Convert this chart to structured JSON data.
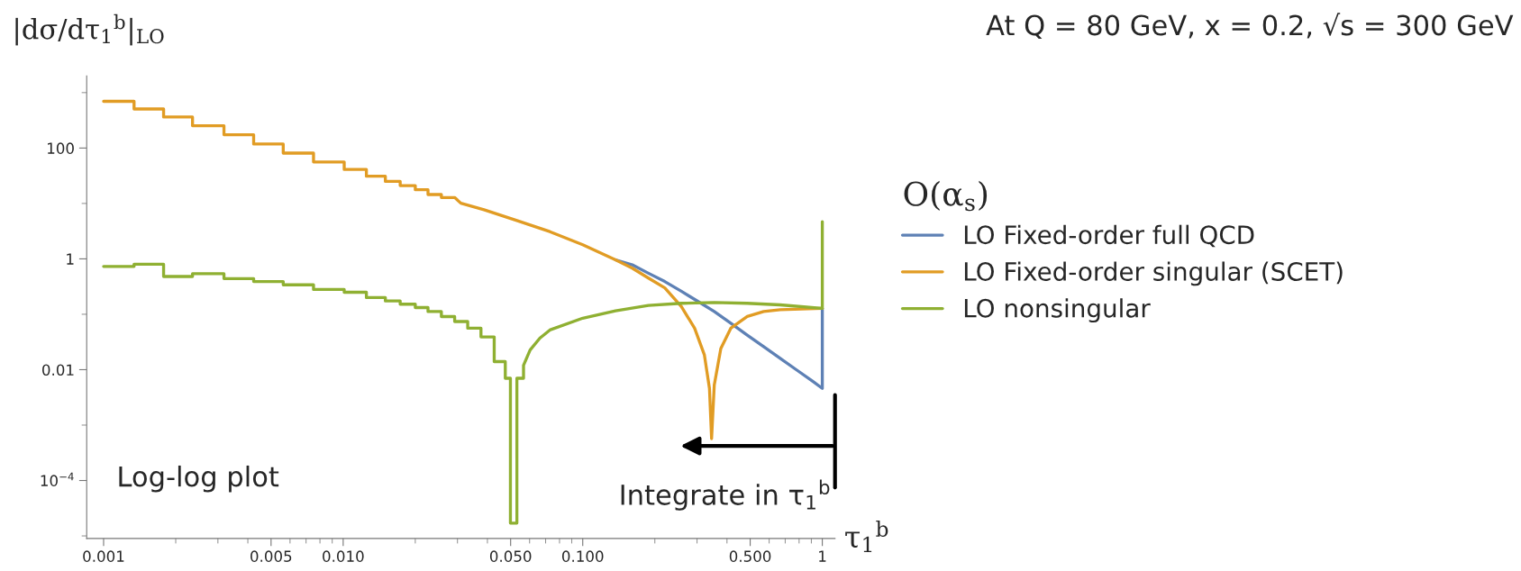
{
  "chart_data": {
    "type": "line",
    "log": "xy",
    "title": "At Q = 80 GeV, x = 0.2, √s = 300 GeV",
    "ylabel": "|dσ/dτ$_{1}$$^{b}$|$_{LO}$",
    "xlabel": "τ$_{1}$$^{b}$",
    "legend_title": "O(α$_{s}$)",
    "legend": "right",
    "annotations": [
      "Log-log plot",
      "Integrate in τ$_{1}$$^{b}$"
    ],
    "xlim": [
      0.00085,
      1.13
    ],
    "ylim": [
      9e-06,
      2000
    ],
    "xticks": [
      {
        "value": 0.001,
        "label": "0.001"
      },
      {
        "value": 0.002,
        "label": null
      },
      {
        "value": 0.003,
        "label": null
      },
      {
        "value": 0.004,
        "label": null
      },
      {
        "value": 0.005,
        "label": "0.005"
      },
      {
        "value": 0.006,
        "label": null
      },
      {
        "value": 0.007,
        "label": null
      },
      {
        "value": 0.008,
        "label": null
      },
      {
        "value": 0.009,
        "label": null
      },
      {
        "value": 0.01,
        "label": "0.010"
      },
      {
        "value": 0.02,
        "label": null
      },
      {
        "value": 0.03,
        "label": null
      },
      {
        "value": 0.04,
        "label": null
      },
      {
        "value": 0.05,
        "label": "0.050"
      },
      {
        "value": 0.06,
        "label": null
      },
      {
        "value": 0.07,
        "label": null
      },
      {
        "value": 0.08,
        "label": null
      },
      {
        "value": 0.09,
        "label": null
      },
      {
        "value": 0.1,
        "label": "0.100"
      },
      {
        "value": 0.2,
        "label": null
      },
      {
        "value": 0.3,
        "label": null
      },
      {
        "value": 0.4,
        "label": null
      },
      {
        "value": 0.5,
        "label": "0.500"
      },
      {
        "value": 0.6,
        "label": null
      },
      {
        "value": 0.7,
        "label": null
      },
      {
        "value": 0.8,
        "label": null
      },
      {
        "value": 0.9,
        "label": null
      },
      1
    ],
    "yticks": [
      {
        "value": 1e-05,
        "label": null
      },
      {
        "value": 0.0001,
        "label": "10$^{−4}$"
      },
      {
        "value": 0.001,
        "label": null
      },
      0.01,
      {
        "value": 0.1,
        "label": null
      },
      1,
      {
        "value": 10,
        "label": null
      },
      100,
      {
        "value": 1000,
        "label": null
      }
    ],
    "series": [
      {
        "name": "LO Fixed-order full QCD",
        "color": "#5e81b5",
        "x": [
          0.137,
          0.161,
          0.188,
          0.22,
          0.258,
          0.303,
          0.354,
          0.415,
          0.486,
          0.569,
          0.667,
          0.781,
          0.915,
          1,
          1
        ],
        "values": [
          0.96,
          0.78,
          0.55,
          0.39,
          0.26,
          0.17,
          0.112,
          0.069,
          0.042,
          0.026,
          0.016,
          0.0099,
          0.0061,
          0.0046,
          0.128
        ]
      },
      {
        "name": "LO Fixed-order singular (SCET)",
        "color": "#e19c24",
        "x": [
          0.001,
          0.00134,
          0.00134,
          0.00178,
          0.00178,
          0.00235,
          0.00235,
          0.00318,
          0.00318,
          0.00423,
          0.00423,
          0.00562,
          0.00562,
          0.00752,
          0.00752,
          0.0101,
          0.0101,
          0.0125,
          0.0125,
          0.015,
          0.015,
          0.0173,
          0.0173,
          0.02,
          0.02,
          0.0226,
          0.0226,
          0.0257,
          0.0257,
          0.0292,
          0.031,
          0.0387,
          0.0531,
          0.0729,
          0.1,
          0.137,
          0.161,
          0.188,
          0.22,
          0.258,
          0.293,
          0.322,
          0.338,
          0.345,
          0.354,
          0.377,
          0.415,
          0.486,
          0.569,
          0.667,
          1
        ],
        "values": [
          697,
          697,
          507,
          507,
          363,
          363,
          253,
          253,
          174,
          174,
          118,
          118,
          81,
          81,
          56,
          56,
          41,
          41,
          31,
          31,
          25,
          25,
          21,
          21,
          17.7,
          17.7,
          14.5,
          14.5,
          12.8,
          12.8,
          10.1,
          7.7,
          4.9,
          3.1,
          1.8,
          0.96,
          0.68,
          0.45,
          0.3,
          0.138,
          0.056,
          0.0184,
          0.0046,
          0.00057,
          0.0053,
          0.024,
          0.056,
          0.091,
          0.112,
          0.121,
          0.128
        ]
      },
      {
        "name": "LO nonsingular",
        "color": "#8fb032",
        "x": [
          0.001,
          0.00134,
          0.00134,
          0.00178,
          0.00178,
          0.00235,
          0.00235,
          0.00318,
          0.00318,
          0.00423,
          0.00423,
          0.00562,
          0.00562,
          0.00752,
          0.00752,
          0.0101,
          0.0101,
          0.0125,
          0.0125,
          0.015,
          0.015,
          0.0173,
          0.0173,
          0.02,
          0.02,
          0.0226,
          0.0226,
          0.0257,
          0.0257,
          0.0292,
          0.0292,
          0.0331,
          0.0331,
          0.0376,
          0.0376,
          0.0427,
          0.0427,
          0.0475,
          0.0475,
          0.0499,
          0.0499,
          0.0531,
          0.0531,
          0.0566,
          0.0566,
          0.0603,
          0.0662,
          0.0729,
          0.1,
          0.137,
          0.188,
          0.258,
          0.354,
          0.486,
          0.667,
          1,
          1
        ],
        "values": [
          0.73,
          0.73,
          0.8,
          0.8,
          0.48,
          0.48,
          0.54,
          0.54,
          0.44,
          0.44,
          0.39,
          0.39,
          0.34,
          0.34,
          0.28,
          0.28,
          0.25,
          0.25,
          0.2,
          0.2,
          0.174,
          0.174,
          0.152,
          0.152,
          0.132,
          0.132,
          0.112,
          0.112,
          0.091,
          0.091,
          0.074,
          0.074,
          0.056,
          0.056,
          0.039,
          0.039,
          0.014,
          0.014,
          0.007,
          0.007,
          1.7e-05,
          1.7e-05,
          0.007,
          0.007,
          0.012,
          0.0227,
          0.037,
          0.052,
          0.085,
          0.115,
          0.144,
          0.158,
          0.163,
          0.158,
          0.148,
          0.128,
          4.7
        ]
      }
    ]
  }
}
